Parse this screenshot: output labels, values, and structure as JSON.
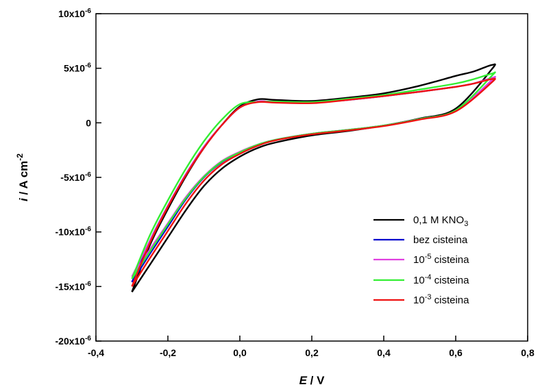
{
  "chart_data": {
    "type": "line",
    "xlabel": {
      "symbol": "E",
      "unit": " / V"
    },
    "ylabel": {
      "symbol": "i",
      "unit": " / A cm",
      "sup": "-2"
    },
    "xlim": [
      -0.4,
      0.8
    ],
    "ylim": [
      -2e-05,
      1e-05
    ],
    "x_ticks": [
      {
        "value": -0.4,
        "label": "-0,4"
      },
      {
        "value": -0.2,
        "label": "-0,2"
      },
      {
        "value": 0.0,
        "label": "0,0"
      },
      {
        "value": 0.2,
        "label": "0,2"
      },
      {
        "value": 0.4,
        "label": "0,4"
      },
      {
        "value": 0.6,
        "label": "0,6"
      },
      {
        "value": 0.8,
        "label": "0,8"
      }
    ],
    "y_ticks": [
      {
        "value": 1e-05,
        "base": "10x10",
        "exp": "-6"
      },
      {
        "value": 5e-06,
        "base": "5x10",
        "exp": "-6"
      },
      {
        "value": 0,
        "base": "0",
        "exp": ""
      },
      {
        "value": -5e-06,
        "base": "-5x10",
        "exp": "-6"
      },
      {
        "value": -1e-05,
        "base": "-10x10",
        "exp": "-6"
      },
      {
        "value": -1.5e-05,
        "base": "-15x10",
        "exp": "-6"
      },
      {
        "value": -2e-05,
        "base": "-20x10",
        "exp": "-6"
      }
    ],
    "legend_position": "bottom-right",
    "series": [
      {
        "name": "0,1 M KNO",
        "name_sub": "3",
        "color": "#000000",
        "x": [
          -0.3,
          -0.25,
          -0.2,
          -0.15,
          -0.1,
          -0.05,
          0.0,
          0.05,
          0.1,
          0.2,
          0.3,
          0.4,
          0.5,
          0.6,
          0.7,
          0.7,
          0.65,
          0.6,
          0.5,
          0.4,
          0.3,
          0.2,
          0.1,
          0.05,
          0.0,
          -0.05,
          -0.1,
          -0.15,
          -0.2,
          -0.25,
          -0.3
        ],
        "y": [
          -1.55e-05,
          -1.3e-05,
          -1.05e-05,
          -8e-06,
          -5.8e-06,
          -4.2e-06,
          -3.1e-06,
          -2.3e-06,
          -1.8e-06,
          -1.15e-06,
          -7.5e-07,
          -2.5e-07,
          4e-07,
          1.3e-06,
          4.9e-06,
          5.3e-06,
          4.7e-06,
          4.3e-06,
          3.4e-06,
          2.7e-06,
          2.3e-06,
          2e-06,
          2.1e-06,
          2.15e-06,
          1.5e-06,
          -2e-07,
          -2.3e-06,
          -4.9e-06,
          -7.9e-06,
          -1.12e-05,
          -1.55e-05
        ]
      },
      {
        "name": "bez cisteina",
        "name_sub": "",
        "color": "#0000cc",
        "x": [
          -0.3,
          -0.25,
          -0.2,
          -0.15,
          -0.1,
          -0.05,
          0.0,
          0.05,
          0.1,
          0.2,
          0.3,
          0.4,
          0.5,
          0.6,
          0.7,
          0.7,
          0.65,
          0.6,
          0.5,
          0.4,
          0.3,
          0.2,
          0.1,
          0.05,
          0.0,
          -0.05,
          -0.1,
          -0.15,
          -0.2,
          -0.25,
          -0.3
        ],
        "y": [
          -1.46e-05,
          -1.2e-05,
          -9.5e-06,
          -7e-06,
          -5e-06,
          -3.6e-06,
          -2.7e-06,
          -2e-06,
          -1.55e-06,
          -1e-06,
          -6.5e-07,
          -2.5e-07,
          3.5e-07,
          1.1e-06,
          3.9e-06,
          4.1e-06,
          3.6e-06,
          3.3e-06,
          2.85e-06,
          2.45e-06,
          2.1e-06,
          1.85e-06,
          1.9e-06,
          1.95e-06,
          1.4e-06,
          -2e-07,
          -2.2e-06,
          -4.7e-06,
          -7.6e-06,
          -1.08e-05,
          -1.46e-05
        ]
      },
      {
        "name": "10",
        "name_sup": "-5",
        "name_rest": " cisteina",
        "color": "#e040e0",
        "x": [
          -0.3,
          -0.25,
          -0.2,
          -0.15,
          -0.1,
          -0.05,
          0.0,
          0.05,
          0.1,
          0.2,
          0.3,
          0.4,
          0.5,
          0.6,
          0.7,
          0.7,
          0.65,
          0.6,
          0.5,
          0.4,
          0.3,
          0.2,
          0.1,
          0.05,
          0.0,
          -0.05,
          -0.1,
          -0.15,
          -0.2,
          -0.25,
          -0.3
        ],
        "y": [
          -1.41e-05,
          -1.16e-05,
          -9.2e-06,
          -6.8e-06,
          -4.9e-06,
          -3.5e-06,
          -2.65e-06,
          -2e-06,
          -1.55e-06,
          -1e-06,
          -6.5e-07,
          -2.5e-07,
          3.5e-07,
          1.1e-06,
          3.9e-06,
          4.1e-06,
          3.6e-06,
          3.3e-06,
          2.85e-06,
          2.45e-06,
          2.1e-06,
          1.85e-06,
          1.9e-06,
          1.95e-06,
          1.4e-06,
          -2e-07,
          -2.2e-06,
          -4.7e-06,
          -7.6e-06,
          -1.08e-05,
          -1.41e-05
        ]
      },
      {
        "name": "10",
        "name_sup": "-4",
        "name_rest": " cisteina",
        "color": "#33ee33",
        "x": [
          -0.3,
          -0.25,
          -0.2,
          -0.15,
          -0.1,
          -0.05,
          0.0,
          0.05,
          0.1,
          0.2,
          0.3,
          0.4,
          0.5,
          0.6,
          0.7,
          0.7,
          0.65,
          0.6,
          0.5,
          0.4,
          0.3,
          0.2,
          0.1,
          0.05,
          0.0,
          -0.05,
          -0.1,
          -0.15,
          -0.2,
          -0.25,
          -0.3
        ],
        "y": [
          -1.43e-05,
          -1.18e-05,
          -9.3e-06,
          -6.9e-06,
          -4.95e-06,
          -3.55e-06,
          -2.7e-06,
          -2e-06,
          -1.55e-06,
          -1e-06,
          -6.5e-07,
          -2.5e-07,
          3.5e-07,
          1.15e-06,
          4.3e-06,
          4.5e-06,
          4e-06,
          3.6e-06,
          3.05e-06,
          2.55e-06,
          2.2e-06,
          1.9e-06,
          1.95e-06,
          1.9e-06,
          1.7e-06,
          3e-07,
          -1.7e-06,
          -4.2e-06,
          -7.1e-06,
          -1.03e-05,
          -1.43e-05
        ]
      },
      {
        "name": "10",
        "name_sup": "-3",
        "name_rest": " cisteina",
        "color": "#ee1111",
        "x": [
          -0.3,
          -0.25,
          -0.2,
          -0.15,
          -0.1,
          -0.05,
          0.0,
          0.05,
          0.1,
          0.2,
          0.3,
          0.4,
          0.5,
          0.6,
          0.7,
          0.7,
          0.65,
          0.6,
          0.5,
          0.4,
          0.3,
          0.2,
          0.1,
          0.05,
          0.0,
          -0.05,
          -0.1,
          -0.15,
          -0.2,
          -0.25,
          -0.3
        ],
        "y": [
          -1.5e-05,
          -1.24e-05,
          -9.9e-06,
          -7.4e-06,
          -5.3e-06,
          -3.8e-06,
          -2.85e-06,
          -2.1e-06,
          -1.6e-06,
          -1.05e-06,
          -7e-07,
          -3e-07,
          3e-07,
          1.05e-06,
          3.7e-06,
          4e-06,
          3.6e-06,
          3.3e-06,
          2.85e-06,
          2.45e-06,
          2.1e-06,
          1.8e-06,
          1.85e-06,
          1.9e-06,
          1.4e-06,
          -2e-07,
          -2.3e-06,
          -4.8e-06,
          -7.7e-06,
          -1.1e-05,
          -1.5e-05
        ]
      }
    ]
  }
}
